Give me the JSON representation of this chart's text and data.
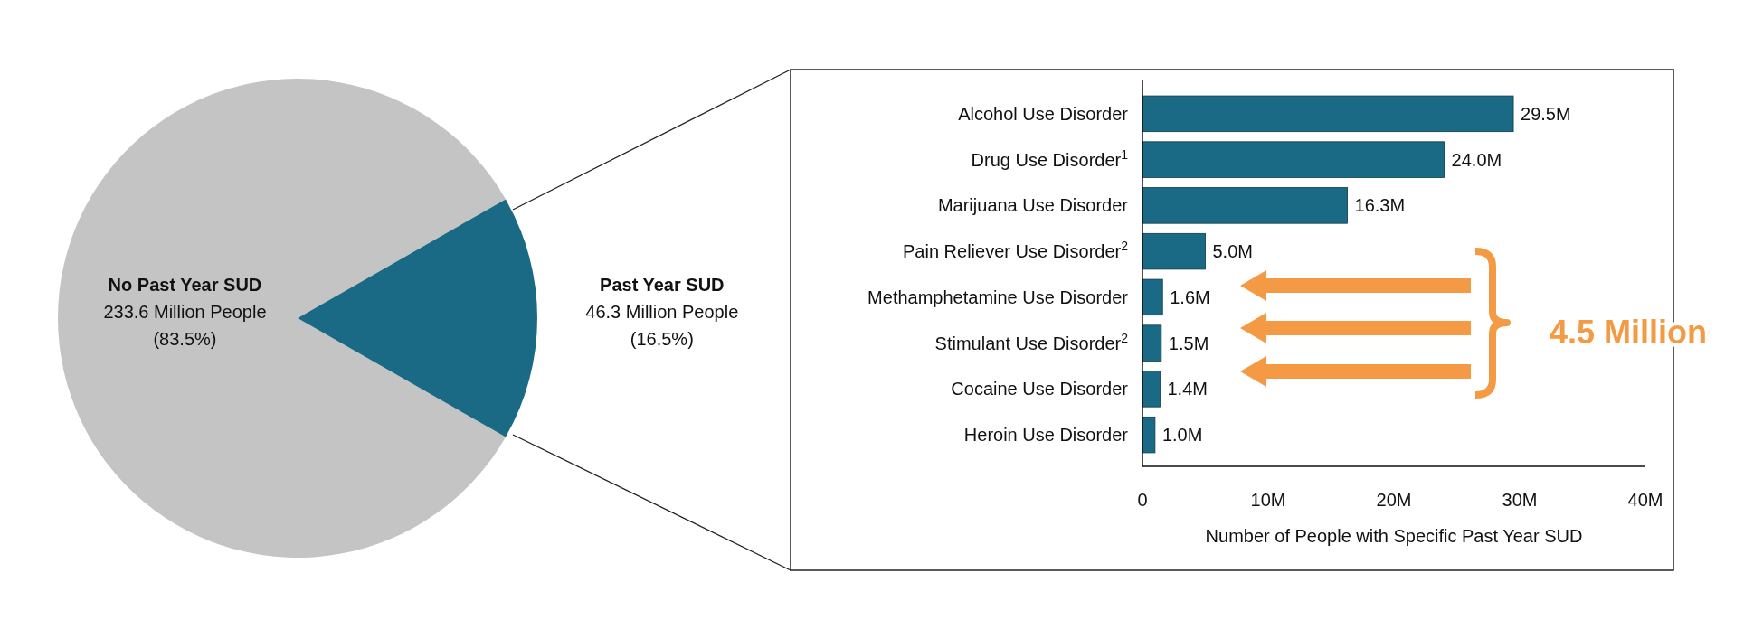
{
  "chart_data": [
    {
      "type": "pie",
      "categories": [
        "No Past Year SUD",
        "Past Year SUD"
      ],
      "values": [
        233.6,
        46.3
      ],
      "colors": [
        "#c4c4c4",
        "#1a6985"
      ],
      "value_labels": [
        "233.6 Million People\n(83.5%)",
        "46.3 Million People\n(16.5%)"
      ]
    },
    {
      "type": "bar",
      "orientation": "horizontal",
      "categories": [
        "Alcohol Use Disorder",
        "Drug Use Disorder$^{1}$",
        "Marijuana Use Disorder",
        "Pain Reliever Use Disorder$^{2}$",
        "Methamphetamine Use Disorder",
        "Stimulant Use Disorder$^{2}$",
        "Cocaine Use Disorder",
        "Heroin Use Disorder"
      ],
      "values": [
        29.5,
        24.0,
        16.3,
        5.0,
        1.6,
        1.5,
        1.4,
        1.0
      ],
      "color": "#1a6985",
      "value_labels": [
        "29.5M",
        "24.0M",
        "16.3M",
        "5.0M",
        "1.6M",
        "1.5M",
        "1.4M",
        "1.0M"
      ],
      "xlim": [
        0,
        40
      ],
      "xticks": [
        0,
        {
          "value": 10,
          "label": "10M"
        },
        {
          "value": 20,
          "label": "20M"
        },
        {
          "value": 30,
          "label": "30M"
        },
        {
          "value": 40,
          "label": "40M"
        }
      ],
      "xlabel": "Number of People with Specific Past Year SUD",
      "grid": false,
      "annotations": [
        "4.5 Million"
      ]
    }
  ]
}
